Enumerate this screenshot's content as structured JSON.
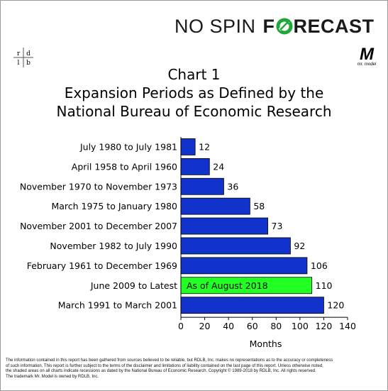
{
  "brand": {
    "part1": "NO SPIN",
    "f": "F",
    "rest": "RECAST",
    "color_green": "#1fa83a",
    "color_dark": "#1a1a1a"
  },
  "logos": {
    "left": {
      "letters": [
        "r",
        "d",
        "l",
        "b"
      ]
    },
    "right": {
      "mark": "M",
      "tagline": "mr. model"
    }
  },
  "header": {
    "line1": "Chart 1",
    "line2": "Expansion Periods as Defined by the",
    "line3": "National Bureau of Economic Research"
  },
  "chart_data": {
    "type": "bar",
    "orientation": "horizontal",
    "categories": [
      "July 1980 to July 1981",
      "April 1958 to April 1960",
      "November 1970 to November 1973",
      "March 1975 to January 1980",
      "November 2001 to December 2007",
      "November 1982 to July 1990",
      "February 1961 to December 1969",
      "June 2009 to Latest",
      "March 1991 to March 2001"
    ],
    "values": [
      12,
      24,
      36,
      58,
      73,
      92,
      106,
      110,
      120
    ],
    "data_labels": [
      "12",
      "24",
      "36",
      "58",
      "73",
      "92",
      "106",
      "110",
      "120"
    ],
    "bar_colors": [
      "#1133cc",
      "#1133cc",
      "#1133cc",
      "#1133cc",
      "#1133cc",
      "#1133cc",
      "#1133cc",
      "#22ff22",
      "#1133cc"
    ],
    "annotations": [
      {
        "category": "June 2009 to Latest",
        "text": "As of August 2018"
      }
    ],
    "xlabel": "Months",
    "ylabel": "",
    "xlim": [
      0,
      140
    ],
    "xticks": [
      0,
      20,
      40,
      60,
      80,
      100,
      120,
      140
    ],
    "grid": false
  },
  "footer": {
    "line1": "The information contained in this report has been gathered from sources believed to be reliable, but RDLB, Inc. makes no representations as to the accuracy or completeness",
    "line2": "of such information. This report is further subject to the terms of the disclaimer and limitations of liability contained on the last page of this report. Unless otherwise noted,",
    "line3": "the shaded areas on all charts indicate recessions as dated by the National Bureau of Economic Research. Copyright © 1989-2018 by RDLB, Inc. All rights reserved.",
    "line4": "The trademark Mr. Model is owned by RDLB, Inc."
  }
}
